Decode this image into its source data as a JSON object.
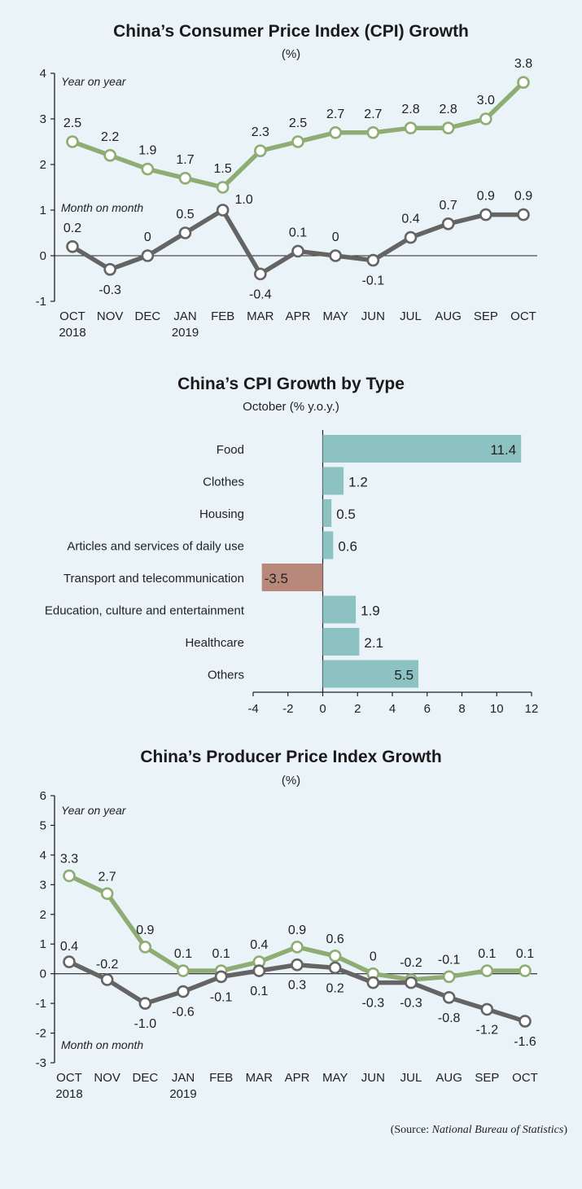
{
  "colors": {
    "background": "#eaf3f8",
    "yoy": "#8fac74",
    "mom": "#646464",
    "bar_positive": "#8cc2c1",
    "bar_negative": "#b8887a"
  },
  "source": {
    "prefix": "(Source: ",
    "name": "National Bureau of Statistics",
    "suffix": ")"
  },
  "chart_data": [
    {
      "type": "line",
      "title": "China’s Consumer Price Index (CPI) Growth",
      "subtitle": "(%)",
      "categories": [
        "OCT",
        "NOV",
        "DEC",
        "JAN",
        "FEB",
        "MAR",
        "APR",
        "MAY",
        "JUN",
        "JUL",
        "AUG",
        "SEP",
        "OCT"
      ],
      "category_sublabels": [
        "2018",
        "",
        "",
        "2019",
        "",
        "",
        "",
        "",
        "",
        "",
        "",
        "",
        ""
      ],
      "ylim": [
        -1,
        4
      ],
      "yticks": [
        "-1",
        "0",
        "1",
        "2",
        "3",
        "4"
      ],
      "series": [
        {
          "name": "Year on year",
          "values": [
            2.5,
            2.2,
            1.9,
            1.7,
            1.5,
            2.3,
            2.5,
            2.7,
            2.7,
            2.8,
            2.8,
            3.0,
            3.8
          ],
          "labels": [
            "2.5",
            "2.2",
            "1.9",
            "1.7",
            "1.5",
            "2.3",
            "2.5",
            "2.7",
            "2.7",
            "2.8",
            "2.8",
            "3.0",
            "3.8"
          ]
        },
        {
          "name": "Month on month",
          "values": [
            0.2,
            -0.3,
            0,
            0.5,
            1.0,
            -0.4,
            0.1,
            0,
            -0.1,
            0.4,
            0.7,
            0.9,
            0.9
          ],
          "labels": [
            "0.2",
            "-0.3",
            "0",
            "0.5",
            "1.0",
            "-0.4",
            "0.1",
            "0",
            "-0.1",
            "0.4",
            "0.7",
            "0.9",
            "0.9"
          ]
        }
      ]
    },
    {
      "type": "bar",
      "orientation": "horizontal",
      "title": "China’s CPI Growth by Type",
      "subtitle": "October (% y.o.y.)",
      "categories": [
        "Food",
        "Clothes",
        "Housing",
        "Articles and services of daily use",
        "Transport and telecommunication",
        "Education, culture and entertainment",
        "Healthcare",
        "Others"
      ],
      "values": [
        11.4,
        1.2,
        0.5,
        0.6,
        -3.5,
        1.9,
        2.1,
        5.5
      ],
      "labels": [
        "11.4",
        "1.2",
        "0.5",
        "0.6",
        "-3.5",
        "1.9",
        "2.1",
        "5.5"
      ],
      "xlim": [
        -4,
        12
      ],
      "xticks": [
        "-4",
        "-2",
        "0",
        "2",
        "4",
        "6",
        "8",
        "10",
        "12"
      ]
    },
    {
      "type": "line",
      "title": "China’s Producer Price Index Growth",
      "subtitle": "(%)",
      "categories": [
        "OCT",
        "NOV",
        "DEC",
        "JAN",
        "FEB",
        "MAR",
        "APR",
        "MAY",
        "JUN",
        "JUL",
        "AUG",
        "SEP",
        "OCT"
      ],
      "category_sublabels": [
        "2018",
        "",
        "",
        "2019",
        "",
        "",
        "",
        "",
        "",
        "",
        "",
        "",
        ""
      ],
      "ylim": [
        -3,
        6
      ],
      "yticks": [
        "-3",
        "-2",
        "-1",
        "0",
        "1",
        "2",
        "3",
        "4",
        "5",
        "6"
      ],
      "series": [
        {
          "name": "Year on year",
          "values": [
            3.3,
            2.7,
            0.9,
            0.1,
            0.1,
            0.4,
            0.9,
            0.6,
            0,
            -0.2,
            -0.1,
            0.1,
            0.1
          ],
          "labels": [
            "3.3",
            "2.7",
            "0.9",
            "0.1",
            "0.1",
            "0.4",
            "0.9",
            "0.6",
            "0",
            "-0.2",
            "-0.1",
            "0.1",
            "0.1"
          ]
        },
        {
          "name": "Month on month",
          "values": [
            0.4,
            -0.2,
            -1.0,
            -0.6,
            -0.1,
            0.1,
            0.3,
            0.2,
            -0.3,
            -0.3,
            -0.8,
            -1.2,
            -1.6
          ],
          "labels": [
            "0.4",
            "-0.2",
            "-1.0",
            "-0.6",
            "-0.1",
            "0.1",
            "0.3",
            "0.2",
            "-0.3",
            "-0.3",
            "-0.8",
            "-1.2",
            "-1.6"
          ]
        }
      ]
    }
  ]
}
